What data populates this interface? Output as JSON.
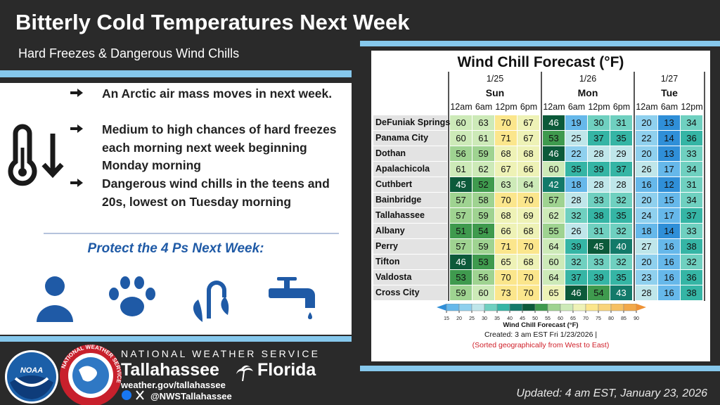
{
  "header": {
    "title": "Bitterly Cold Temperatures Next Week",
    "subtitle": "Hard Freezes & Dangerous Wind Chills"
  },
  "bullets": [
    "An Arctic air mass moves in next week.",
    "Medium to high chances of hard freezes each morning next week beginning Monday morning",
    "Dangerous wind chills in the teens and 20s, lowest on Tuesday morning"
  ],
  "protect_title": "Protect the 4 Ps Next Week:",
  "table": {
    "title": "Wind Chill Forecast (°F)",
    "days": [
      {
        "date": "1/25",
        "name": "Sun",
        "times": [
          "12am",
          "6am",
          "12pm",
          "6pm"
        ]
      },
      {
        "date": "1/26",
        "name": "Mon",
        "times": [
          "12am",
          "6am",
          "12pm",
          "6pm"
        ]
      },
      {
        "date": "1/27",
        "name": "Tue",
        "times": [
          "12am",
          "6am",
          "12pm"
        ]
      }
    ],
    "rows": [
      {
        "city": "DeFuniak Springs",
        "values": [
          60,
          63,
          70,
          67,
          46,
          19,
          30,
          31,
          20,
          13,
          34
        ]
      },
      {
        "city": "Panama City",
        "values": [
          60,
          61,
          71,
          67,
          53,
          25,
          37,
          35,
          22,
          14,
          36
        ]
      },
      {
        "city": "Dothan",
        "values": [
          56,
          59,
          68,
          68,
          46,
          22,
          28,
          29,
          20,
          13,
          33
        ]
      },
      {
        "city": "Apalachicola",
        "values": [
          61,
          62,
          67,
          66,
          60,
          35,
          39,
          37,
          26,
          17,
          34
        ]
      },
      {
        "city": "Cuthbert",
        "values": [
          45,
          52,
          63,
          64,
          42,
          18,
          28,
          28,
          16,
          12,
          31
        ]
      },
      {
        "city": "Bainbridge",
        "values": [
          57,
          58,
          70,
          70,
          57,
          28,
          33,
          32,
          20,
          15,
          34
        ]
      },
      {
        "city": "Tallahassee",
        "values": [
          57,
          59,
          68,
          69,
          62,
          32,
          38,
          35,
          24,
          17,
          37
        ]
      },
      {
        "city": "Albany",
        "values": [
          51,
          54,
          66,
          68,
          55,
          26,
          31,
          32,
          18,
          14,
          33
        ]
      },
      {
        "city": "Perry",
        "values": [
          57,
          59,
          71,
          70,
          64,
          39,
          45,
          40,
          27,
          16,
          38
        ]
      },
      {
        "city": "Tifton",
        "values": [
          46,
          53,
          65,
          68,
          60,
          32,
          33,
          32,
          20,
          16,
          32
        ]
      },
      {
        "city": "Valdosta",
        "values": [
          53,
          56,
          70,
          70,
          64,
          37,
          39,
          35,
          23,
          16,
          36
        ]
      },
      {
        "city": "Cross City",
        "values": [
          59,
          60,
          73,
          70,
          65,
          46,
          54,
          43,
          28,
          16,
          38
        ]
      }
    ],
    "colorbar": {
      "ticks": [
        15,
        20,
        25,
        30,
        35,
        40,
        45,
        50,
        55,
        60,
        65,
        70,
        75,
        80,
        85,
        90
      ],
      "colors": [
        "#2f8fd8",
        "#66b8ea",
        "#8fd0ee",
        "#bfe6ea",
        "#6fd0c0",
        "#35b5a5",
        "#137a6a",
        "#0c5a3a",
        "#3f9a4e",
        "#9fd391",
        "#cdeab8",
        "#eef2b6",
        "#fbe68c",
        "#f9d47a",
        "#f6c062",
        "#f2a94a",
        "#ee9235"
      ],
      "label": "Wind Chill Forecast (°F)"
    },
    "created": "Created: 3 am EST Fri 1/23/2026  |",
    "note": "(Sorted geographically from West to East)"
  },
  "footer": {
    "noaa": "NOAA",
    "agency": "NATIONAL WEATHER SERVICE",
    "office": "Tallahassee",
    "state": "Florida",
    "website": "weather.gov/tallahassee",
    "social": "@NWSTallahassee",
    "updated": "Updated: 4 am EST, January 23, 2026"
  }
}
